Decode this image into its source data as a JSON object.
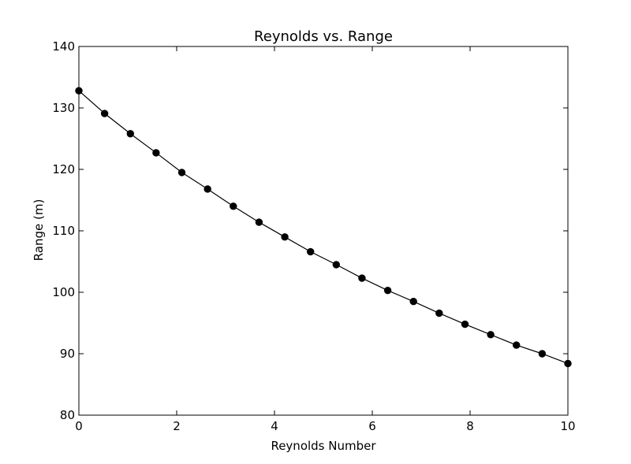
{
  "chart_data": {
    "type": "line",
    "title": "Reynolds vs. Range",
    "xlabel": "Reynolds Number",
    "ylabel": "Range (m)",
    "xlim": [
      0,
      10
    ],
    "ylim": [
      80,
      140
    ],
    "x_ticks": [
      0,
      2,
      4,
      6,
      8,
      10
    ],
    "y_ticks": [
      80,
      90,
      100,
      110,
      120,
      130,
      140
    ],
    "grid": false,
    "legend": "none",
    "series": [
      {
        "color": "#000000",
        "marker": "circle",
        "x": [
          0,
          0.526,
          1.053,
          1.579,
          2.105,
          2.632,
          3.158,
          3.684,
          4.211,
          4.737,
          5.263,
          5.789,
          6.316,
          6.842,
          7.368,
          7.895,
          8.421,
          8.947,
          9.474,
          10
        ],
        "y": [
          132.8,
          129.1,
          125.8,
          122.7,
          119.5,
          116.8,
          114.0,
          111.4,
          109.0,
          106.6,
          104.5,
          102.3,
          100.3,
          98.5,
          96.6,
          94.8,
          93.1,
          91.4,
          90.0,
          88.4
        ]
      }
    ]
  }
}
